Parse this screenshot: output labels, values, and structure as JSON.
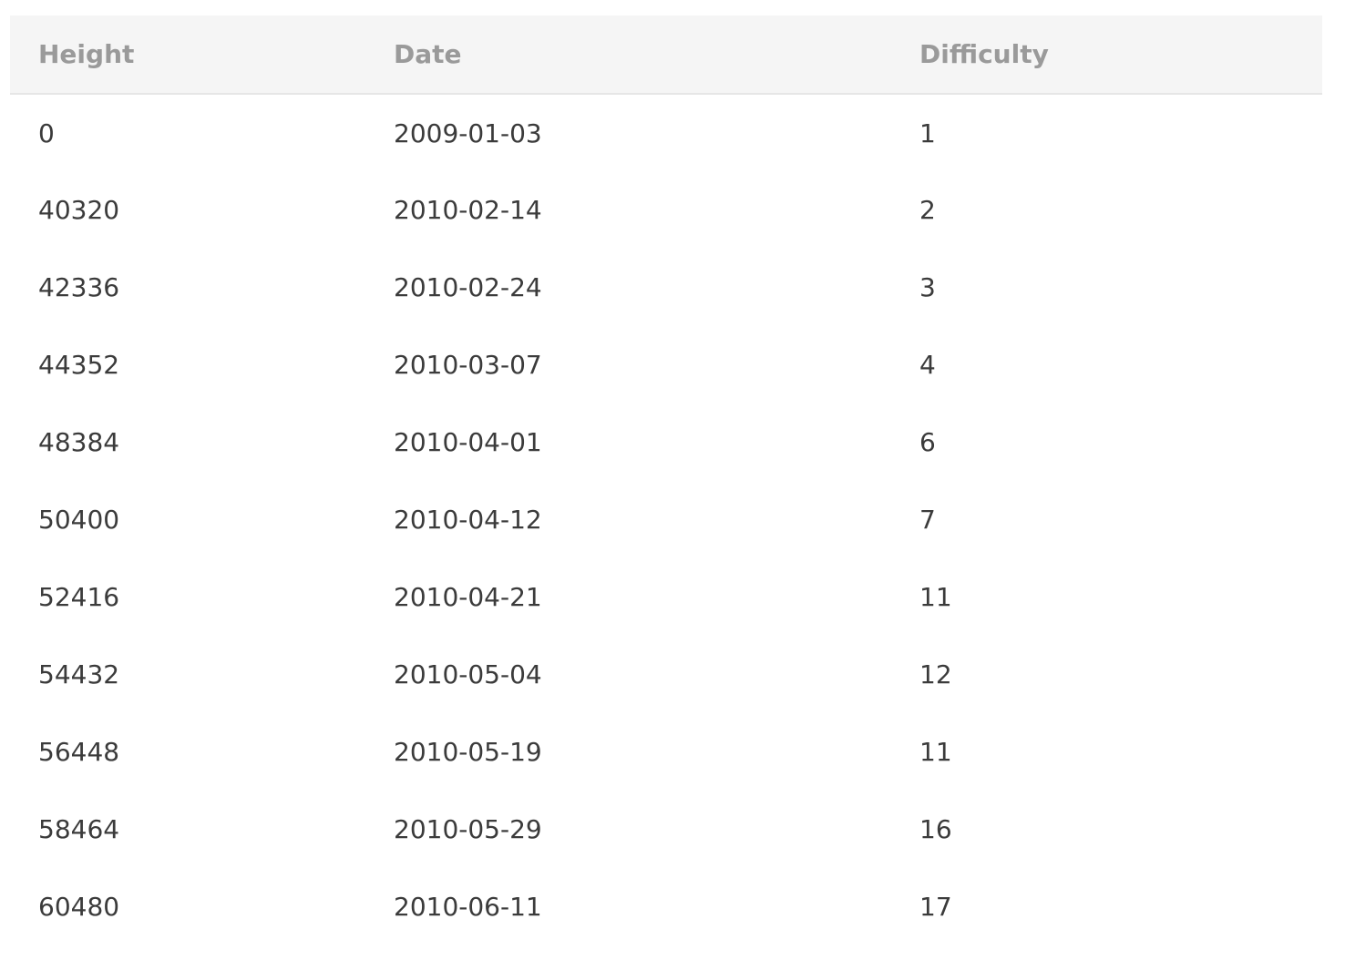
{
  "table": {
    "headers": {
      "height": "Height",
      "date": "Date",
      "difficulty": "Difficulty"
    },
    "rows": [
      {
        "height": "0",
        "date": "2009-01-03",
        "difficulty": "1"
      },
      {
        "height": "40320",
        "date": "2010-02-14",
        "difficulty": "2"
      },
      {
        "height": "42336",
        "date": "2010-02-24",
        "difficulty": "3"
      },
      {
        "height": "44352",
        "date": "2010-03-07",
        "difficulty": "4"
      },
      {
        "height": "48384",
        "date": "2010-04-01",
        "difficulty": "6"
      },
      {
        "height": "50400",
        "date": "2010-04-12",
        "difficulty": "7"
      },
      {
        "height": "52416",
        "date": "2010-04-21",
        "difficulty": "11"
      },
      {
        "height": "54432",
        "date": "2010-05-04",
        "difficulty": "12"
      },
      {
        "height": "56448",
        "date": "2010-05-19",
        "difficulty": "11"
      },
      {
        "height": "58464",
        "date": "2010-05-29",
        "difficulty": "16"
      },
      {
        "height": "60480",
        "date": "2010-06-11",
        "difficulty": "17"
      }
    ]
  },
  "colors": {
    "header_background": "#f5f5f5",
    "header_text": "#9a9a9a",
    "cell_text": "#3b3b3b",
    "header_border": "#e6e6e6"
  }
}
